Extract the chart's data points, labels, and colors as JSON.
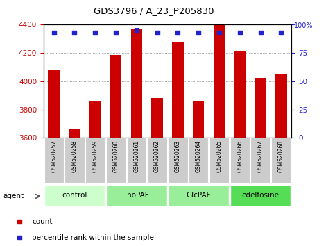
{
  "title": "GDS3796 / A_23_P205830",
  "samples": [
    "GSM520257",
    "GSM520258",
    "GSM520259",
    "GSM520260",
    "GSM520261",
    "GSM520262",
    "GSM520263",
    "GSM520264",
    "GSM520265",
    "GSM520266",
    "GSM520267",
    "GSM520268"
  ],
  "counts": [
    4080,
    3665,
    3860,
    4185,
    4370,
    3880,
    4280,
    3860,
    4395,
    4210,
    4025,
    4055
  ],
  "percentile_ranks": [
    93,
    93,
    93,
    93,
    95,
    93,
    93,
    93,
    93,
    93,
    93,
    93
  ],
  "ylim_left": [
    3600,
    4400
  ],
  "ylim_right": [
    0,
    100
  ],
  "yticks_left": [
    3600,
    3800,
    4000,
    4200,
    4400
  ],
  "yticks_right": [
    0,
    25,
    50,
    75,
    100
  ],
  "bar_color": "#cc0000",
  "dot_color": "#2222cc",
  "groups": [
    {
      "label": "control",
      "start": 0,
      "end": 3,
      "color": "#ccffcc"
    },
    {
      "label": "InoPAF",
      "start": 3,
      "end": 6,
      "color": "#88ee88"
    },
    {
      "label": "GlcPAF",
      "start": 6,
      "end": 9,
      "color": "#88ee88"
    },
    {
      "label": "edelfosine",
      "start": 9,
      "end": 12,
      "color": "#44cc44"
    }
  ],
  "tick_bg_color": "#cccccc",
  "legend_count_color": "#cc0000",
  "legend_pct_color": "#2222cc",
  "left_label_color": "#cc0000",
  "right_label_color": "#2222cc"
}
